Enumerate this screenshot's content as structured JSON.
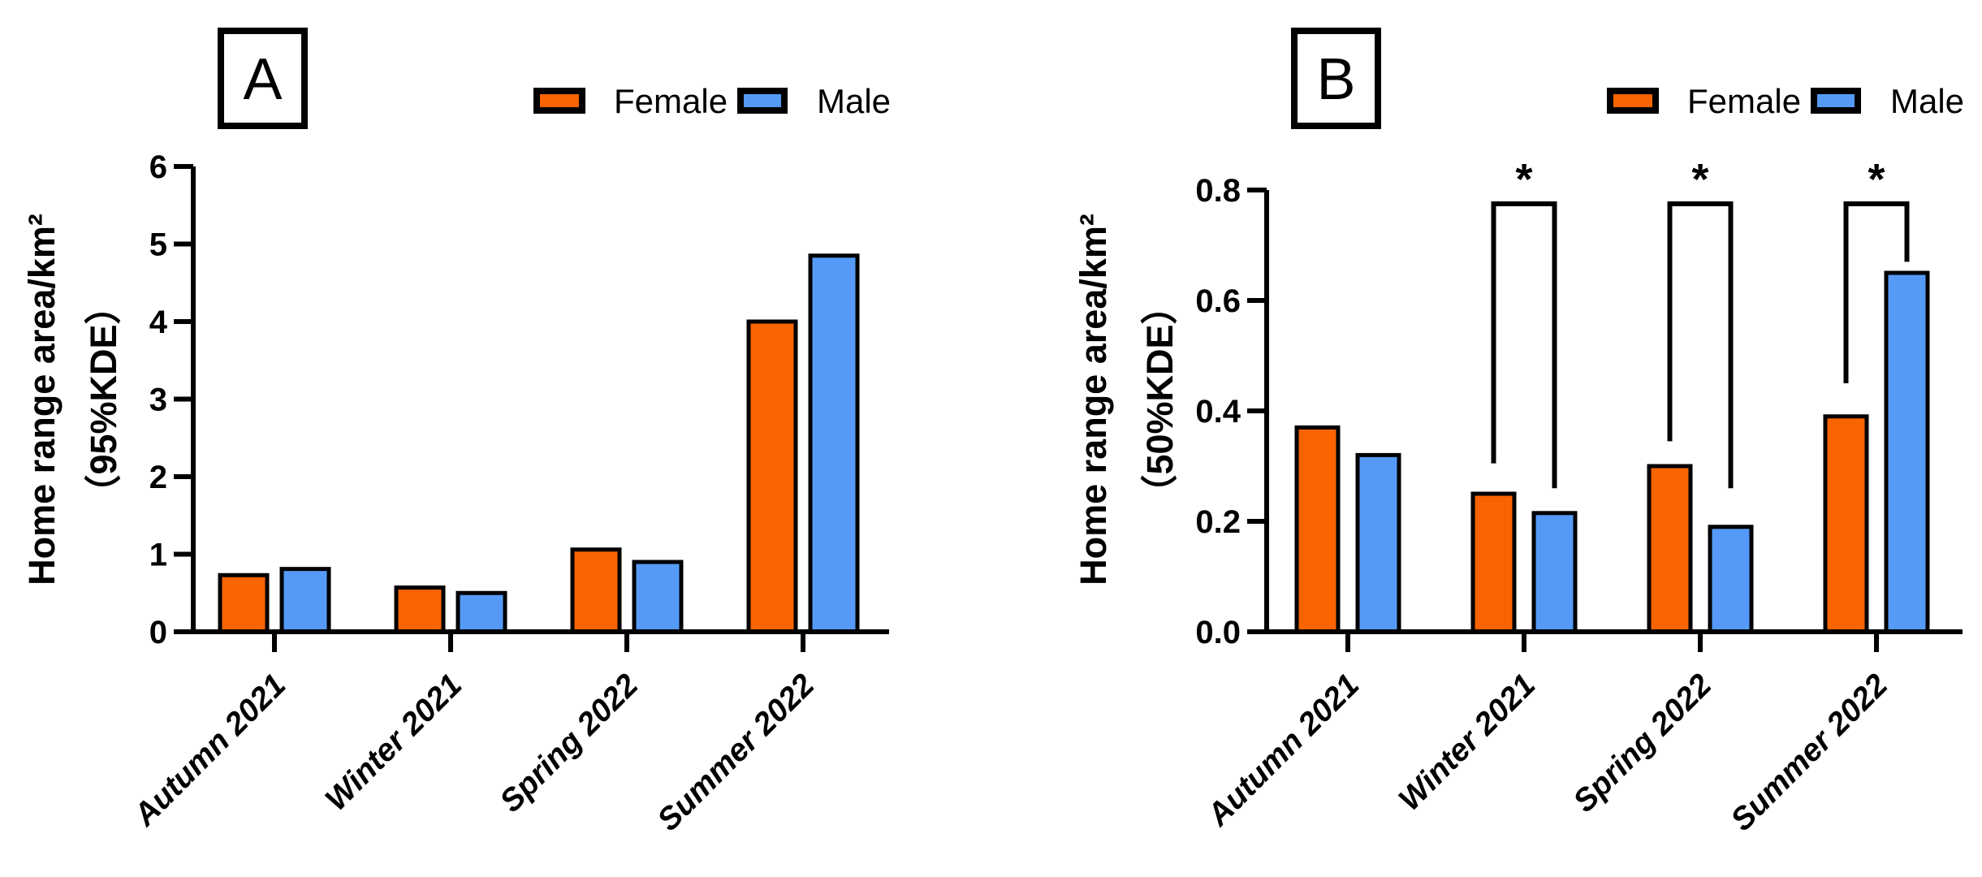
{
  "figure": {
    "background": "#FFFFFF",
    "outline_color": "#000000",
    "female_color": "#FA6400",
    "male_color": "#559AF7"
  },
  "chart_data": [
    {
      "type": "bar",
      "panel_label": "A",
      "ylabel": "Home range area/km²",
      "ylabel_line2": "（95%KDE）",
      "categories": [
        "Autumn 2021",
        "Winter 2021",
        "Spring 2022",
        "Summer 2022"
      ],
      "series": [
        {
          "name": "Female",
          "color": "#FA6400",
          "values": [
            0.73,
            0.57,
            1.06,
            4.0
          ]
        },
        {
          "name": "Male",
          "color": "#559AF7",
          "values": [
            0.81,
            0.5,
            0.9,
            4.85
          ]
        }
      ],
      "ylim": [
        0,
        6
      ],
      "yticks": [
        0,
        1,
        2,
        3,
        4,
        5,
        6
      ],
      "ytick_labels": [
        "0",
        "1",
        "2",
        "3",
        "4",
        "5",
        "6"
      ],
      "legend": {
        "position": "top-right",
        "entries": [
          "Female",
          "Male"
        ]
      },
      "grid": false,
      "significance": []
    },
    {
      "type": "bar",
      "panel_label": "B",
      "ylabel": "Home range area/km²",
      "ylabel_line2": "（50%KDE）",
      "categories": [
        "Autumn 2021",
        "Winter 2021",
        "Spring 2022",
        "Summer 2022"
      ],
      "series": [
        {
          "name": "Female",
          "color": "#FA6400",
          "values": [
            0.37,
            0.25,
            0.3,
            0.39
          ]
        },
        {
          "name": "Male",
          "color": "#559AF7",
          "values": [
            0.32,
            0.215,
            0.19,
            0.65
          ]
        }
      ],
      "ylim": [
        0,
        0.8
      ],
      "yticks": [
        0,
        0.2,
        0.4,
        0.6,
        0.8
      ],
      "ytick_labels": [
        "0.0",
        "0.2",
        "0.4",
        "0.6",
        "0.8"
      ],
      "legend": {
        "position": "top-right",
        "entries": [
          "Female",
          "Male"
        ]
      },
      "grid": false,
      "significance": [
        {
          "pair": "Winter 2021",
          "label": "*",
          "bracket_top": 0.775,
          "left_drop_to": 0.305,
          "right_drop_to": 0.26
        },
        {
          "pair": "Spring 2022",
          "label": "*",
          "bracket_top": 0.775,
          "left_drop_to": 0.345,
          "right_drop_to": 0.26
        },
        {
          "pair": "Summer 2022",
          "label": "*",
          "bracket_top": 0.775,
          "left_drop_to": 0.45,
          "right_drop_to": 0.67
        }
      ]
    }
  ]
}
